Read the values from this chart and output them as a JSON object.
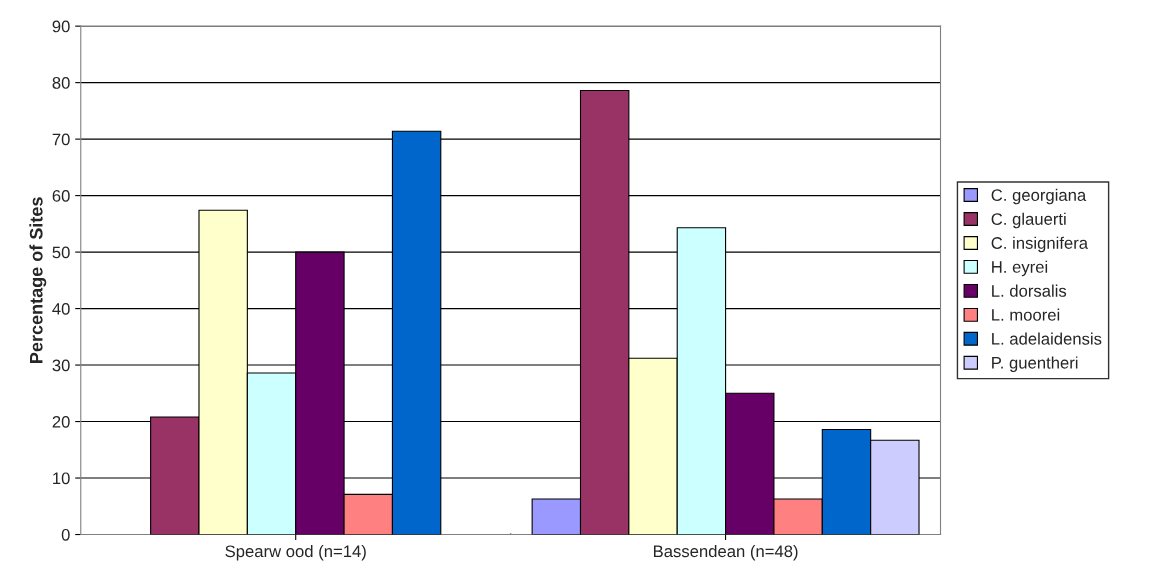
{
  "chart_data": {
    "type": "bar",
    "ylabel": "Percentage of Sites",
    "categories": [
      "Spearw ood (n=14)",
      "Bassendean (n=48)"
    ],
    "series": [
      {
        "name": "C. georgiana",
        "color": "#9999ff",
        "values": [
          null,
          6.3
        ]
      },
      {
        "name": "C. glauerti",
        "color": "#993366",
        "values": [
          20.8,
          78.6
        ]
      },
      {
        "name": "C. insignifera",
        "color": "#ffffcc",
        "values": [
          57.4,
          31.2
        ]
      },
      {
        "name": "H. eyrei",
        "color": "#ccffff",
        "values": [
          28.6,
          54.3
        ]
      },
      {
        "name": "L. dorsalis",
        "color": "#660066",
        "values": [
          50,
          25
        ]
      },
      {
        "name": "L. moorei",
        "color": "#ff8080",
        "values": [
          7.1,
          6.3
        ]
      },
      {
        "name": "L. adelaidensis",
        "color": "#0066cc",
        "values": [
          71.4,
          18.6
        ]
      },
      {
        "name": "P. guentheri",
        "color": "#ccccff",
        "values": [
          null,
          16.7
        ]
      }
    ],
    "ylim": [
      0,
      90
    ],
    "yticks": [
      0,
      10,
      20,
      30,
      40,
      50,
      60,
      70,
      80,
      90
    ],
    "grid": "y",
    "legend": "right"
  }
}
